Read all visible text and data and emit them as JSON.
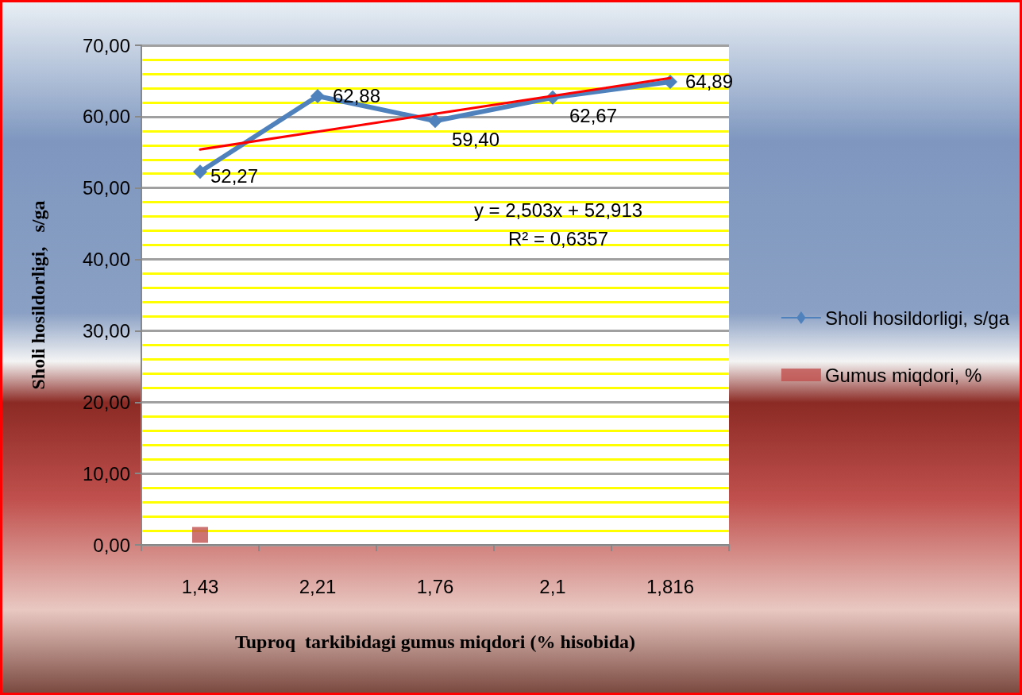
{
  "chart_data": {
    "type": "line",
    "xlabel": "Tuproq  tarkibidagi gumus miqdori (% hisobida)",
    "ylabel": "Sholi hosildorligi,   s/ga",
    "categories": [
      "1,43",
      "2,21",
      "1,76",
      "2,1",
      "1,816"
    ],
    "series": [
      {
        "name": "Sholi hosildorligi, s/ga",
        "color": "#4f81bd",
        "marker": "diamond",
        "values": [
          52.27,
          62.88,
          59.4,
          62.67,
          64.89
        ],
        "value_labels": [
          "52,27",
          "62,88",
          "59,40",
          "62,67",
          "64,89"
        ]
      },
      {
        "name": "Gumus miqdori, %",
        "color": "#c0504d",
        "marker": "square",
        "type": "scatter",
        "values": [
          1.4,
          null,
          null,
          null,
          null
        ]
      },
      {
        "color": "#ff0000",
        "marker": "none",
        "values": [
          55.4,
          57.9,
          60.4,
          62.9,
          65.4
        ]
      }
    ],
    "annotations": [
      "y = 2,503x + 52,913",
      "R² = 0,6357"
    ],
    "ylim": [
      0,
      70
    ],
    "yticks": [
      {
        "value": 0,
        "label": "0,00"
      },
      {
        "value": 2,
        "label": null
      },
      {
        "value": 4,
        "label": null
      },
      {
        "value": 6,
        "label": null
      },
      {
        "value": 8,
        "label": null
      },
      {
        "value": 10,
        "label": "10,00"
      },
      {
        "value": 12,
        "label": null
      },
      {
        "value": 14,
        "label": null
      },
      {
        "value": 16,
        "label": null
      },
      {
        "value": 18,
        "label": null
      },
      {
        "value": 20,
        "label": "20,00"
      },
      {
        "value": 22,
        "label": null
      },
      {
        "value": 24,
        "label": null
      },
      {
        "value": 26,
        "label": null
      },
      {
        "value": 28,
        "label": null
      },
      {
        "value": 30,
        "label": "30,00"
      },
      {
        "value": 32,
        "label": null
      },
      {
        "value": 34,
        "label": null
      },
      {
        "value": 36,
        "label": null
      },
      {
        "value": 38,
        "label": null
      },
      {
        "value": 40,
        "label": "40,00"
      },
      {
        "value": 42,
        "label": null
      },
      {
        "value": 44,
        "label": null
      },
      {
        "value": 46,
        "label": null
      },
      {
        "value": 48,
        "label": null
      },
      {
        "value": 50,
        "label": "50,00"
      },
      {
        "value": 52,
        "label": null
      },
      {
        "value": 54,
        "label": null
      },
      {
        "value": 56,
        "label": null
      },
      {
        "value": 58,
        "label": null
      },
      {
        "value": 60,
        "label": "60,00"
      },
      {
        "value": 62,
        "label": null
      },
      {
        "value": 64,
        "label": null
      },
      {
        "value": 66,
        "label": null
      },
      {
        "value": 68,
        "label": null
      },
      {
        "value": 70,
        "label": "70,00"
      }
    ],
    "grid": "y",
    "legend": "right"
  }
}
